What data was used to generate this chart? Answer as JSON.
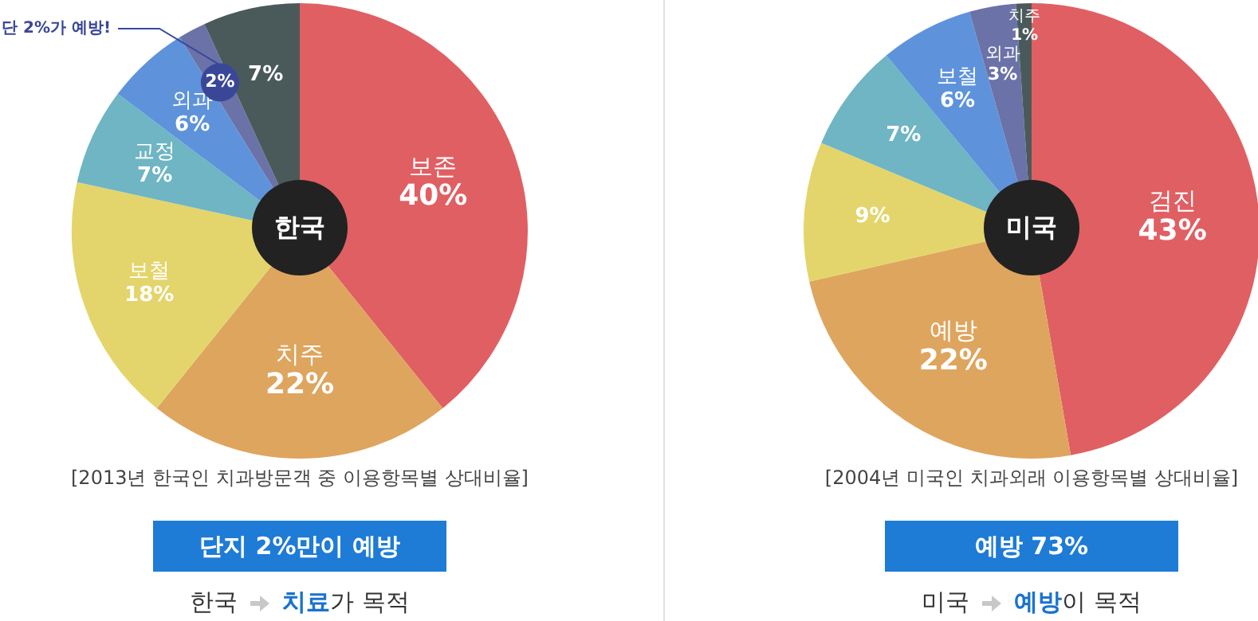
{
  "chart_data": [
    {
      "type": "pie",
      "title": "한국",
      "categories": [
        "보존",
        "치주",
        "보철",
        "교정",
        "외과",
        null,
        null
      ],
      "values": [
        40,
        22,
        18,
        7,
        6,
        2,
        7
      ],
      "colors": [
        "#e05f63",
        "#dea55e",
        "#e3d56b",
        "#6fb5c4",
        "#5e93db",
        "#6b72a8",
        "#4a5a5a"
      ],
      "value_labels": [
        "40%",
        "22%",
        "18%",
        "7%",
        "6%",
        "2%",
        "7%"
      ],
      "annotations": [
        "[2013년 한국인 치과방문객 중 이용항목별 상대비율]",
        "단지 2%만이 예방",
        "한국",
        "치료",
        "가 목적",
        "단 2%가 예방!"
      ]
    },
    {
      "type": "pie",
      "title": "미국",
      "categories": [
        "검진",
        "예방",
        null,
        null,
        "보철",
        "외과",
        "치주"
      ],
      "values": [
        43,
        22,
        9,
        7,
        6,
        3,
        1
      ],
      "colors": [
        "#e05f63",
        "#dea55e",
        "#e3d56b",
        "#6fb5c4",
        "#5e93db",
        "#6b72a8",
        "#4a5a5a"
      ],
      "value_labels": [
        "43%",
        "22%",
        "9%",
        "7%",
        "6%",
        "3%",
        "1%"
      ],
      "annotations": [
        "[2004년 미국인 치과외래 이용항목별 상대비율]",
        "예방 73%",
        "미국",
        "예방",
        "이 목적"
      ]
    }
  ]
}
